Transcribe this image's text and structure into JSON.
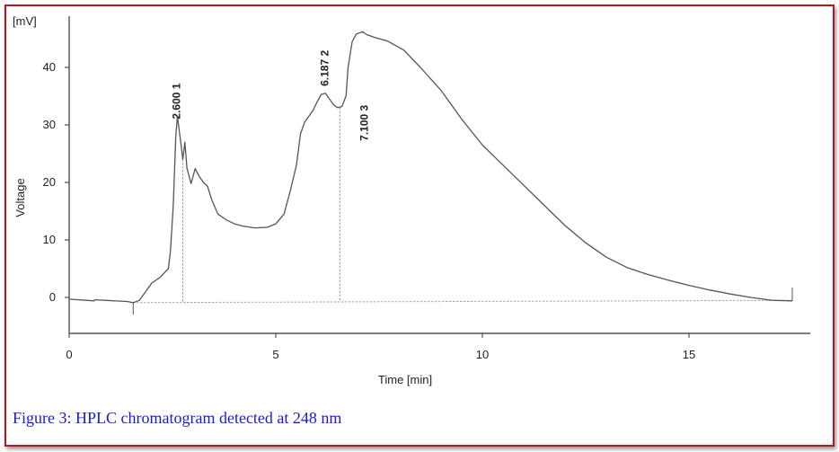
{
  "figure": {
    "caption": "Figure 3: HPLC chromatogram detected at 248 nm"
  },
  "colors": {
    "frame_border": "#c0141c",
    "trace": "#555555",
    "caption_text": "#1a1ad6"
  },
  "chart_data": {
    "type": "line",
    "title": "",
    "xlabel": "Time [min]",
    "ylabel": "Voltage",
    "yunit": "[mV]",
    "xlim": [
      0,
      18
    ],
    "ylim": [
      -6,
      49
    ],
    "xticks": [
      0,
      5,
      10,
      15
    ],
    "yticks": [
      0,
      10,
      20,
      30,
      40
    ],
    "grid": false,
    "peaks": [
      {
        "label": "2.600  1",
        "time": 2.6
      },
      {
        "label": "6.187  2",
        "time": 6.19
      },
      {
        "label": "7.100  3",
        "time": 7.1
      }
    ],
    "series": [
      {
        "x": [
          0,
          0.6,
          0.62,
          1.4,
          1.55,
          1.7,
          1.9,
          2.0,
          2.2,
          2.4,
          2.45,
          2.52,
          2.58,
          2.62,
          2.7,
          2.75,
          2.8,
          2.85,
          2.95,
          3.05,
          3.15,
          3.25,
          3.35,
          3.45,
          3.6,
          3.8,
          4.0,
          4.2,
          4.5,
          4.8,
          5.0,
          5.2,
          5.35,
          5.5,
          5.6,
          5.7,
          5.8,
          5.9,
          6.0,
          6.1,
          6.2,
          6.3,
          6.4,
          6.5,
          6.6,
          6.7,
          6.75,
          6.85,
          6.95,
          7.1,
          7.2,
          7.4,
          7.7,
          8.1,
          8.5,
          9.0,
          9.5,
          10.0,
          10.5,
          11.0,
          11.5,
          12.0,
          12.5,
          13.0,
          13.5,
          14.0,
          14.5,
          15.0,
          15.5,
          16.0,
          16.5,
          17.0,
          17.5
        ],
        "y": [
          -0.3,
          -0.6,
          -0.4,
          -0.7,
          -0.9,
          -0.5,
          1.5,
          2.5,
          3.5,
          5.0,
          8.0,
          16.0,
          28.0,
          31.5,
          27.0,
          24.0,
          27.0,
          22.5,
          19.8,
          22.4,
          21.0,
          20.0,
          19.3,
          17.0,
          14.5,
          13.5,
          12.8,
          12.4,
          12.1,
          12.2,
          12.8,
          14.5,
          18.5,
          23.0,
          28.5,
          30.5,
          31.5,
          32.5,
          34.0,
          35.3,
          35.5,
          34.5,
          33.5,
          33.0,
          33.2,
          35.0,
          40.0,
          44.5,
          45.8,
          46.2,
          45.7,
          45.2,
          44.6,
          43.0,
          40.0,
          36.0,
          31.0,
          26.5,
          23.0,
          19.5,
          16.0,
          12.5,
          9.5,
          7.0,
          5.2,
          4.0,
          3.0,
          2.1,
          1.3,
          0.6,
          0.0,
          -0.5,
          -0.6
        ]
      }
    ],
    "baseline": {
      "x": [
        1.55,
        17.5
      ],
      "y": [
        -0.9,
        -0.5
      ]
    }
  }
}
